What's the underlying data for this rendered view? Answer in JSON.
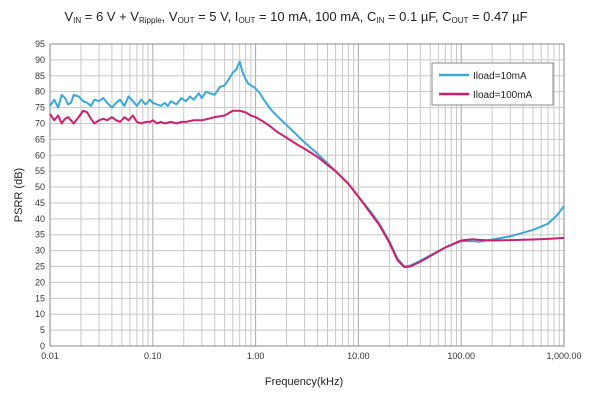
{
  "chart_data": {
    "type": "line",
    "title_parts": [
      {
        "t": "V",
        "s": "IN"
      },
      {
        "t": " = 6 V + V",
        "s": "Ripple"
      },
      {
        "t": ", V",
        "s": "OUT"
      },
      {
        "t": " = 5 V, I",
        "s": "OUT"
      },
      {
        "t": " = 10 mA, 100 mA, C",
        "s": "IN"
      },
      {
        "t": " = 0.1 µF, C",
        "s": "OUT"
      },
      {
        "t": " = 0.47 µF",
        "s": ""
      }
    ],
    "xlabel": "Frequency(kHz)",
    "ylabel": "PSRR (dB)",
    "xscale": "log",
    "xlim": [
      0.01,
      1000
    ],
    "ylim": [
      0,
      95
    ],
    "xticks": [
      0.01,
      0.1,
      1,
      10,
      100,
      1000
    ],
    "xtick_labels": [
      "0.01",
      "0.10",
      "1.00",
      "10.00",
      "100.00",
      "1,000.00"
    ],
    "yticks": [
      0,
      5,
      10,
      15,
      20,
      25,
      30,
      35,
      40,
      45,
      50,
      55,
      60,
      65,
      70,
      75,
      80,
      85,
      90,
      95
    ],
    "grid": true,
    "legend_position": "top-right",
    "series": [
      {
        "name": "Iload=10mA",
        "color": "#3aa9d8",
        "points": [
          [
            0.01,
            75.5
          ],
          [
            0.011,
            77.5
          ],
          [
            0.012,
            75
          ],
          [
            0.013,
            79
          ],
          [
            0.014,
            78
          ],
          [
            0.015,
            76
          ],
          [
            0.016,
            76.5
          ],
          [
            0.017,
            79
          ],
          [
            0.019,
            78.5
          ],
          [
            0.021,
            77
          ],
          [
            0.023,
            76.5
          ],
          [
            0.025,
            75.5
          ],
          [
            0.027,
            77.5
          ],
          [
            0.03,
            77
          ],
          [
            0.033,
            78
          ],
          [
            0.036,
            76.5
          ],
          [
            0.04,
            75
          ],
          [
            0.044,
            76.5
          ],
          [
            0.048,
            77.5
          ],
          [
            0.053,
            75.5
          ],
          [
            0.058,
            78.5
          ],
          [
            0.064,
            77
          ],
          [
            0.07,
            75.5
          ],
          [
            0.077,
            77.5
          ],
          [
            0.085,
            76
          ],
          [
            0.094,
            77.5
          ],
          [
            0.1,
            76.5
          ],
          [
            0.11,
            76
          ],
          [
            0.12,
            75.5
          ],
          [
            0.13,
            76.5
          ],
          [
            0.14,
            75.5
          ],
          [
            0.15,
            77
          ],
          [
            0.17,
            76
          ],
          [
            0.19,
            78
          ],
          [
            0.21,
            77
          ],
          [
            0.23,
            78.5
          ],
          [
            0.25,
            77.5
          ],
          [
            0.28,
            79.5
          ],
          [
            0.3,
            78
          ],
          [
            0.33,
            80
          ],
          [
            0.36,
            79.5
          ],
          [
            0.4,
            79
          ],
          [
            0.45,
            81.5
          ],
          [
            0.5,
            82
          ],
          [
            0.55,
            84
          ],
          [
            0.6,
            86
          ],
          [
            0.65,
            87
          ],
          [
            0.7,
            89.5
          ],
          [
            0.75,
            86
          ],
          [
            0.8,
            84
          ],
          [
            0.85,
            82.5
          ],
          [
            0.9,
            82
          ],
          [
            1,
            81
          ],
          [
            1.1,
            79.5
          ],
          [
            1.2,
            77.5
          ],
          [
            1.4,
            74.5
          ],
          [
            1.6,
            72.5
          ],
          [
            2,
            69.5
          ],
          [
            2.5,
            66.5
          ],
          [
            3,
            64
          ],
          [
            4,
            60.5
          ],
          [
            5,
            57.5
          ],
          [
            6,
            55
          ],
          [
            8,
            51
          ],
          [
            10,
            47
          ],
          [
            13,
            42.5
          ],
          [
            16,
            38.5
          ],
          [
            20,
            33
          ],
          [
            24,
            27.5
          ],
          [
            28,
            25
          ],
          [
            32,
            25.3
          ],
          [
            40,
            26.8
          ],
          [
            50,
            28.5
          ],
          [
            70,
            31
          ],
          [
            100,
            33
          ],
          [
            130,
            33
          ],
          [
            150,
            32.8
          ],
          [
            200,
            33.5
          ],
          [
            300,
            34.5
          ],
          [
            500,
            36.5
          ],
          [
            700,
            38.5
          ],
          [
            850,
            41
          ],
          [
            1000,
            44
          ]
        ]
      },
      {
        "name": "Iload=100mA",
        "color": "#cc1f6f",
        "points": [
          [
            0.01,
            73
          ],
          [
            0.011,
            71
          ],
          [
            0.012,
            72.5
          ],
          [
            0.013,
            70
          ],
          [
            0.014,
            71.5
          ],
          [
            0.015,
            72
          ],
          [
            0.016,
            71
          ],
          [
            0.017,
            70
          ],
          [
            0.019,
            72
          ],
          [
            0.021,
            74
          ],
          [
            0.023,
            73.5
          ],
          [
            0.025,
            71.5
          ],
          [
            0.027,
            70
          ],
          [
            0.03,
            71
          ],
          [
            0.033,
            71.5
          ],
          [
            0.036,
            71
          ],
          [
            0.04,
            72
          ],
          [
            0.044,
            71
          ],
          [
            0.048,
            70.5
          ],
          [
            0.053,
            72
          ],
          [
            0.058,
            71
          ],
          [
            0.064,
            72.5
          ],
          [
            0.07,
            70.5
          ],
          [
            0.077,
            70
          ],
          [
            0.085,
            70.5
          ],
          [
            0.094,
            70.5
          ],
          [
            0.1,
            71
          ],
          [
            0.11,
            70
          ],
          [
            0.12,
            70.5
          ],
          [
            0.13,
            70
          ],
          [
            0.15,
            70.5
          ],
          [
            0.17,
            70
          ],
          [
            0.19,
            70.5
          ],
          [
            0.21,
            70.5
          ],
          [
            0.25,
            71
          ],
          [
            0.3,
            71
          ],
          [
            0.35,
            71.5
          ],
          [
            0.4,
            72
          ],
          [
            0.5,
            72.5
          ],
          [
            0.6,
            74
          ],
          [
            0.7,
            74
          ],
          [
            0.8,
            73.5
          ],
          [
            0.9,
            72.5
          ],
          [
            1,
            72
          ],
          [
            1.2,
            70.5
          ],
          [
            1.4,
            69
          ],
          [
            1.6,
            67.5
          ],
          [
            2,
            65.5
          ],
          [
            2.5,
            63.5
          ],
          [
            3,
            62
          ],
          [
            4,
            59.5
          ],
          [
            5,
            57
          ],
          [
            6,
            55
          ],
          [
            8,
            51
          ],
          [
            10,
            47
          ],
          [
            13,
            42
          ],
          [
            16,
            38
          ],
          [
            20,
            32.5
          ],
          [
            24,
            27
          ],
          [
            28,
            24.8
          ],
          [
            32,
            25
          ],
          [
            40,
            26.5
          ],
          [
            50,
            28.3
          ],
          [
            70,
            31
          ],
          [
            100,
            33.2
          ],
          [
            130,
            33.6
          ],
          [
            150,
            33.4
          ],
          [
            200,
            33.2
          ],
          [
            300,
            33.3
          ],
          [
            500,
            33.5
          ],
          [
            700,
            33.7
          ],
          [
            1000,
            34
          ]
        ]
      }
    ]
  }
}
